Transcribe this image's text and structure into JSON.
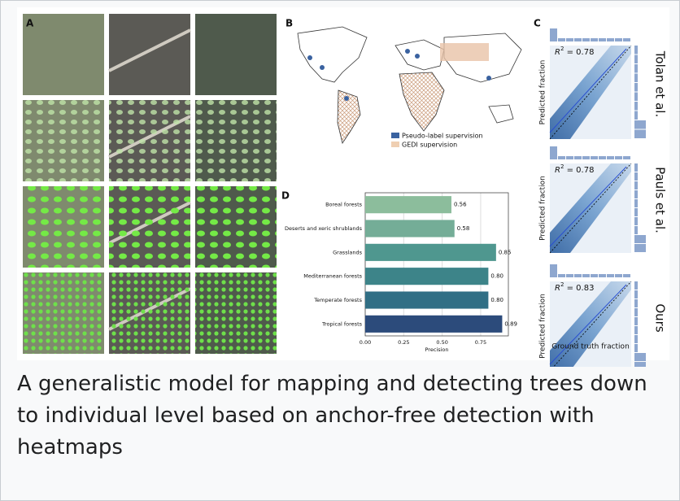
{
  "figure": {
    "panels": {
      "a": "A",
      "b": "B",
      "c": "C",
      "d": "D"
    },
    "map_legend": [
      "Pseudo-label supervision",
      "GEDI supervision"
    ],
    "scatter": {
      "ylabel": "Predicted fraction",
      "xlabel": "Ground truth fraction",
      "rows": [
        {
          "method": "Tolan et al.",
          "r2": "0.78"
        },
        {
          "method": "Pauls et al.",
          "r2": "0.78"
        },
        {
          "method": "Ours",
          "r2": "0.83"
        }
      ]
    }
  },
  "chart_data": {
    "type": "bar",
    "orientation": "horizontal",
    "categories": [
      "Boreal forests",
      "Deserts and xeric shrublands",
      "Grasslands",
      "Mediterranean forests",
      "Temperate forests",
      "Tropical forests"
    ],
    "values": [
      0.56,
      0.58,
      0.85,
      0.8,
      0.8,
      0.89
    ],
    "value_labels": [
      "0.56",
      "0.58",
      "0.85",
      "0.80",
      "0.80",
      "0.89"
    ],
    "colors": [
      "#8cbd9c",
      "#74ad97",
      "#4f978f",
      "#3d8489",
      "#316f85",
      "#2c4b7b"
    ],
    "xlim": [
      0,
      0.93
    ],
    "xticks": [
      {
        "value": 0,
        "label": "0.00"
      },
      0.25,
      {
        "value": 0.5,
        "label": "0.50"
      },
      0.75
    ],
    "xlabel": "Precision",
    "grid": true
  },
  "caption": "A generalistic model for mapping and detecting trees down to individual level based on anchor-free detection with heatmaps"
}
